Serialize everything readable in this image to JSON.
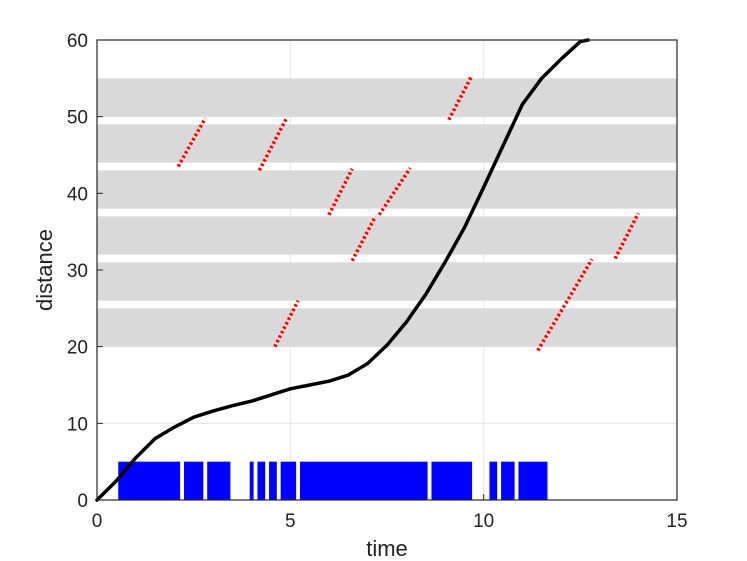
{
  "chart_data": {
    "type": "line",
    "title": "",
    "xlabel": "time",
    "ylabel": "distance",
    "xlim": [
      0,
      15
    ],
    "ylim": [
      0,
      60
    ],
    "xticks": [
      "0",
      "5",
      "10",
      "15"
    ],
    "yticks": [
      "0",
      "10",
      "20",
      "30",
      "40",
      "50",
      "60"
    ],
    "grid": true,
    "colors": {
      "curve": "#000000",
      "bands": "#d9d9d9",
      "dashes": "#ff0000",
      "bars": "#0000ff",
      "grid": "#e6e6e6"
    },
    "bands": [
      {
        "y0": 20,
        "y1": 25
      },
      {
        "y0": 26,
        "y1": 31
      },
      {
        "y0": 32,
        "y1": 37
      },
      {
        "y0": 38,
        "y1": 43
      },
      {
        "y0": 44,
        "y1": 49
      },
      {
        "y0": 50,
        "y1": 55
      }
    ],
    "trajectory": {
      "x": [
        0,
        0.5,
        1,
        1.5,
        2,
        2.5,
        3,
        3.5,
        4,
        4.5,
        5,
        5.5,
        6,
        6.5,
        7,
        7.5,
        8,
        8.5,
        9,
        9.5,
        10,
        10.5,
        11,
        11.5,
        12,
        12.5,
        12.7
      ],
      "y": [
        0,
        2.5,
        5.5,
        8,
        9.5,
        10.8,
        11.6,
        12.3,
        12.9,
        13.7,
        14.5,
        15,
        15.5,
        16.3,
        17.8,
        20.2,
        23.2,
        26.8,
        31,
        35.5,
        40.8,
        46.2,
        51.6,
        55,
        57.5,
        59.8,
        60
      ]
    },
    "red_segments": [
      {
        "x": [
          2.1,
          2.8
        ],
        "y": [
          43.5,
          49.8
        ]
      },
      {
        "x": [
          4.2,
          4.9
        ],
        "y": [
          43,
          49.8
        ]
      },
      {
        "x": [
          4.6,
          5.2
        ],
        "y": [
          20,
          26
        ]
      },
      {
        "x": [
          6.0,
          6.6
        ],
        "y": [
          37.2,
          43.2
        ]
      },
      {
        "x": [
          6.6,
          7.2
        ],
        "y": [
          31.2,
          37
        ]
      },
      {
        "x": [
          7.3,
          8.1
        ],
        "y": [
          37.2,
          43.3
        ]
      },
      {
        "x": [
          9.1,
          9.7
        ],
        "y": [
          49.6,
          55.4
        ]
      },
      {
        "x": [
          11.4,
          12.8
        ],
        "y": [
          19.5,
          31.4
        ]
      },
      {
        "x": [
          13.4,
          14.0
        ],
        "y": [
          31.5,
          37.4
        ]
      }
    ],
    "blue_bars": {
      "height": 5,
      "intervals": [
        [
          0.55,
          2.15
        ],
        [
          2.25,
          2.75
        ],
        [
          2.85,
          3.45
        ],
        [
          3.95,
          4.05
        ],
        [
          4.15,
          4.35
        ],
        [
          4.45,
          4.65
        ],
        [
          4.75,
          5.15
        ],
        [
          5.25,
          8.55
        ],
        [
          8.65,
          9.7
        ],
        [
          10.15,
          10.35
        ],
        [
          10.45,
          10.8
        ],
        [
          10.9,
          11.65
        ]
      ]
    }
  }
}
